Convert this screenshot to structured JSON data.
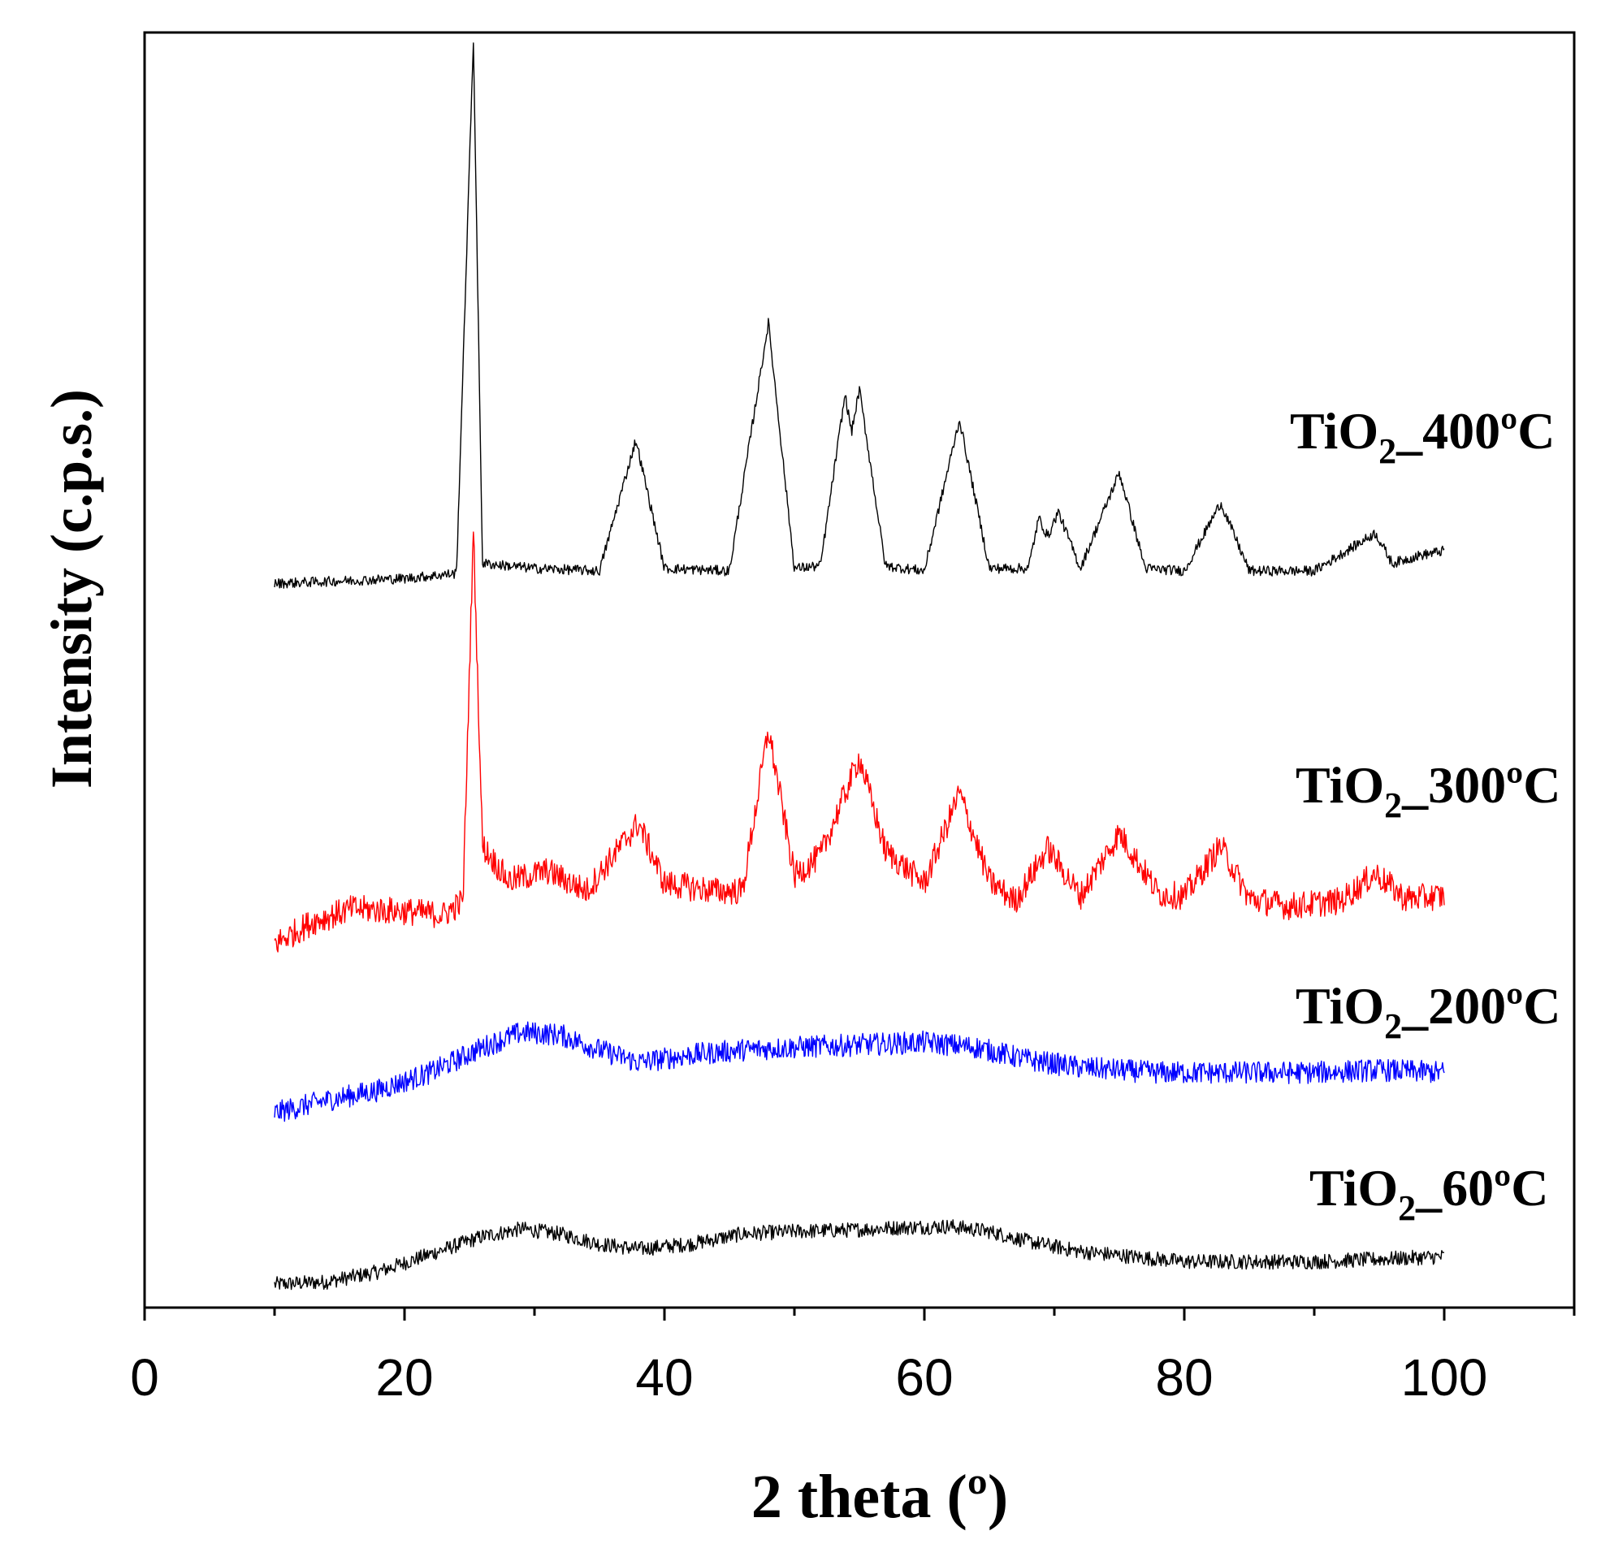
{
  "chart_data": {
    "type": "line",
    "title": "",
    "xlabel": "2 theta (º)",
    "ylabel": "Intensity (c.p.s.)",
    "xlim": [
      0,
      110
    ],
    "ylim": [
      0,
      1000
    ],
    "x_ticks": [
      0,
      20,
      40,
      60,
      80,
      100
    ],
    "y_ticks_shown": false,
    "grid": false,
    "x_range_measured": [
      10,
      100
    ],
    "series": [
      {
        "name": "TiO2_60ºC",
        "label_main": "TiO",
        "label_sub": "2",
        "label_tail": "_60ºC",
        "color": "#000000",
        "points": [
          [
            10,
            12
          ],
          [
            14,
            14
          ],
          [
            18,
            22
          ],
          [
            22,
            36
          ],
          [
            26,
            50
          ],
          [
            29,
            56
          ],
          [
            32,
            52
          ],
          [
            35,
            44
          ],
          [
            38,
            40
          ],
          [
            42,
            44
          ],
          [
            46,
            52
          ],
          [
            50,
            54
          ],
          [
            54,
            55
          ],
          [
            58,
            57
          ],
          [
            62,
            58
          ],
          [
            65,
            54
          ],
          [
            68,
            46
          ],
          [
            72,
            38
          ],
          [
            76,
            34
          ],
          [
            80,
            30
          ],
          [
            85,
            30
          ],
          [
            90,
            30
          ],
          [
            95,
            32
          ],
          [
            100,
            34
          ]
        ]
      },
      {
        "name": "TiO2_200ºC",
        "label_main": "TiO",
        "label_sub": "2",
        "label_tail": "_200ºC",
        "color": "#0000ff",
        "points": [
          [
            10,
            148
          ],
          [
            14,
            158
          ],
          [
            18,
            166
          ],
          [
            22,
            180
          ],
          [
            26,
            200
          ],
          [
            29,
            212
          ],
          [
            32,
            210
          ],
          [
            35,
            198
          ],
          [
            38,
            188
          ],
          [
            42,
            194
          ],
          [
            46,
            198
          ],
          [
            50,
            200
          ],
          [
            55,
            202
          ],
          [
            60,
            204
          ],
          [
            64,
            200
          ],
          [
            68,
            190
          ],
          [
            72,
            184
          ],
          [
            78,
            180
          ],
          [
            85,
            180
          ],
          [
            90,
            180
          ],
          [
            95,
            182
          ],
          [
            100,
            180
          ]
        ]
      },
      {
        "name": "TiO2_300ºC",
        "label_main": "TiO",
        "label_sub": "2",
        "label_tail": "_300ºC",
        "color": "#ff0000",
        "points": [
          [
            10,
            282
          ],
          [
            13,
            300
          ],
          [
            16,
            310
          ],
          [
            20,
            308
          ],
          [
            23,
            305
          ],
          [
            24.5,
            316
          ],
          [
            25.3,
            610
          ],
          [
            26,
            360
          ],
          [
            28,
            332
          ],
          [
            31,
            340
          ],
          [
            34,
            324
          ],
          [
            38,
            378
          ],
          [
            40,
            330
          ],
          [
            44,
            324
          ],
          [
            46,
            324
          ],
          [
            48,
            452
          ],
          [
            50,
            336
          ],
          [
            52,
            352
          ],
          [
            55,
            430
          ],
          [
            57,
            356
          ],
          [
            60,
            330
          ],
          [
            62.7,
            402
          ],
          [
            65,
            332
          ],
          [
            67,
            316
          ],
          [
            69.5,
            358
          ],
          [
            72,
            320
          ],
          [
            75,
            370
          ],
          [
            78,
            322
          ],
          [
            80,
            320
          ],
          [
            82.8,
            360
          ],
          [
            85,
            318
          ],
          [
            88,
            312
          ],
          [
            92,
            316
          ],
          [
            94.7,
            338
          ],
          [
            97,
            318
          ],
          [
            100,
            320
          ]
        ]
      },
      {
        "name": "TiO2_400ºC",
        "label_main": "TiO",
        "label_sub": "2",
        "label_tail": "_400ºC",
        "color": "#000000",
        "points": [
          [
            10,
            568
          ],
          [
            15,
            570
          ],
          [
            20,
            572
          ],
          [
            24,
            576
          ],
          [
            25.3,
            1000
          ],
          [
            26,
            584
          ],
          [
            30,
            580
          ],
          [
            35,
            578
          ],
          [
            37.8,
            682
          ],
          [
            40,
            580
          ],
          [
            45,
            578
          ],
          [
            48,
            775
          ],
          [
            50,
            580
          ],
          [
            52,
            582
          ],
          [
            53.9,
            718
          ],
          [
            54.4,
            688
          ],
          [
            55,
            722
          ],
          [
            57,
            582
          ],
          [
            60,
            578
          ],
          [
            62.7,
            698
          ],
          [
            65,
            580
          ],
          [
            68,
            580
          ],
          [
            68.8,
            620
          ],
          [
            69.5,
            605
          ],
          [
            70.3,
            625
          ],
          [
            72,
            580
          ],
          [
            75,
            656
          ],
          [
            77,
            580
          ],
          [
            80,
            578
          ],
          [
            82.8,
            632
          ],
          [
            85,
            578
          ],
          [
            90,
            578
          ],
          [
            94.7,
            608
          ],
          [
            96,
            584
          ],
          [
            98,
            590
          ],
          [
            100,
            594
          ]
        ]
      }
    ]
  }
}
